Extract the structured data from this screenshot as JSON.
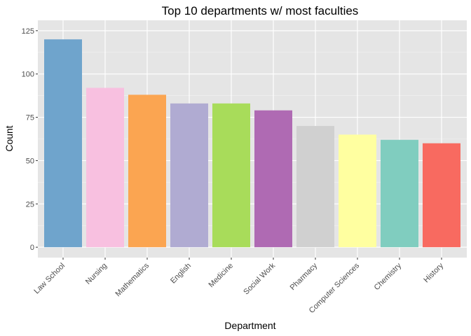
{
  "chart_data": {
    "type": "bar",
    "title": "Top 10 departments w/ most faculties",
    "xlabel": "Department",
    "ylabel": "Count",
    "categories": [
      "Law School",
      "Nursing",
      "Mathematics",
      "English",
      "Medicine",
      "Social Work",
      "Pharmacy",
      "Computer Sciences",
      "Chemistry",
      "History"
    ],
    "values": [
      120,
      92,
      88,
      83,
      83,
      79,
      70,
      65,
      62,
      60
    ],
    "colors": [
      "#6FA4CC",
      "#F8C0E0",
      "#FBA551",
      "#B0ABD2",
      "#A8DC5A",
      "#AF6AB3",
      "#D0D0D0",
      "#FFFFA0",
      "#80CDBF",
      "#F86A60"
    ],
    "yticks": [
      0,
      25,
      50,
      75,
      100,
      125
    ],
    "ylim": [
      -6,
      131
    ],
    "grid": true,
    "panel_background": "#E5E5E5"
  }
}
